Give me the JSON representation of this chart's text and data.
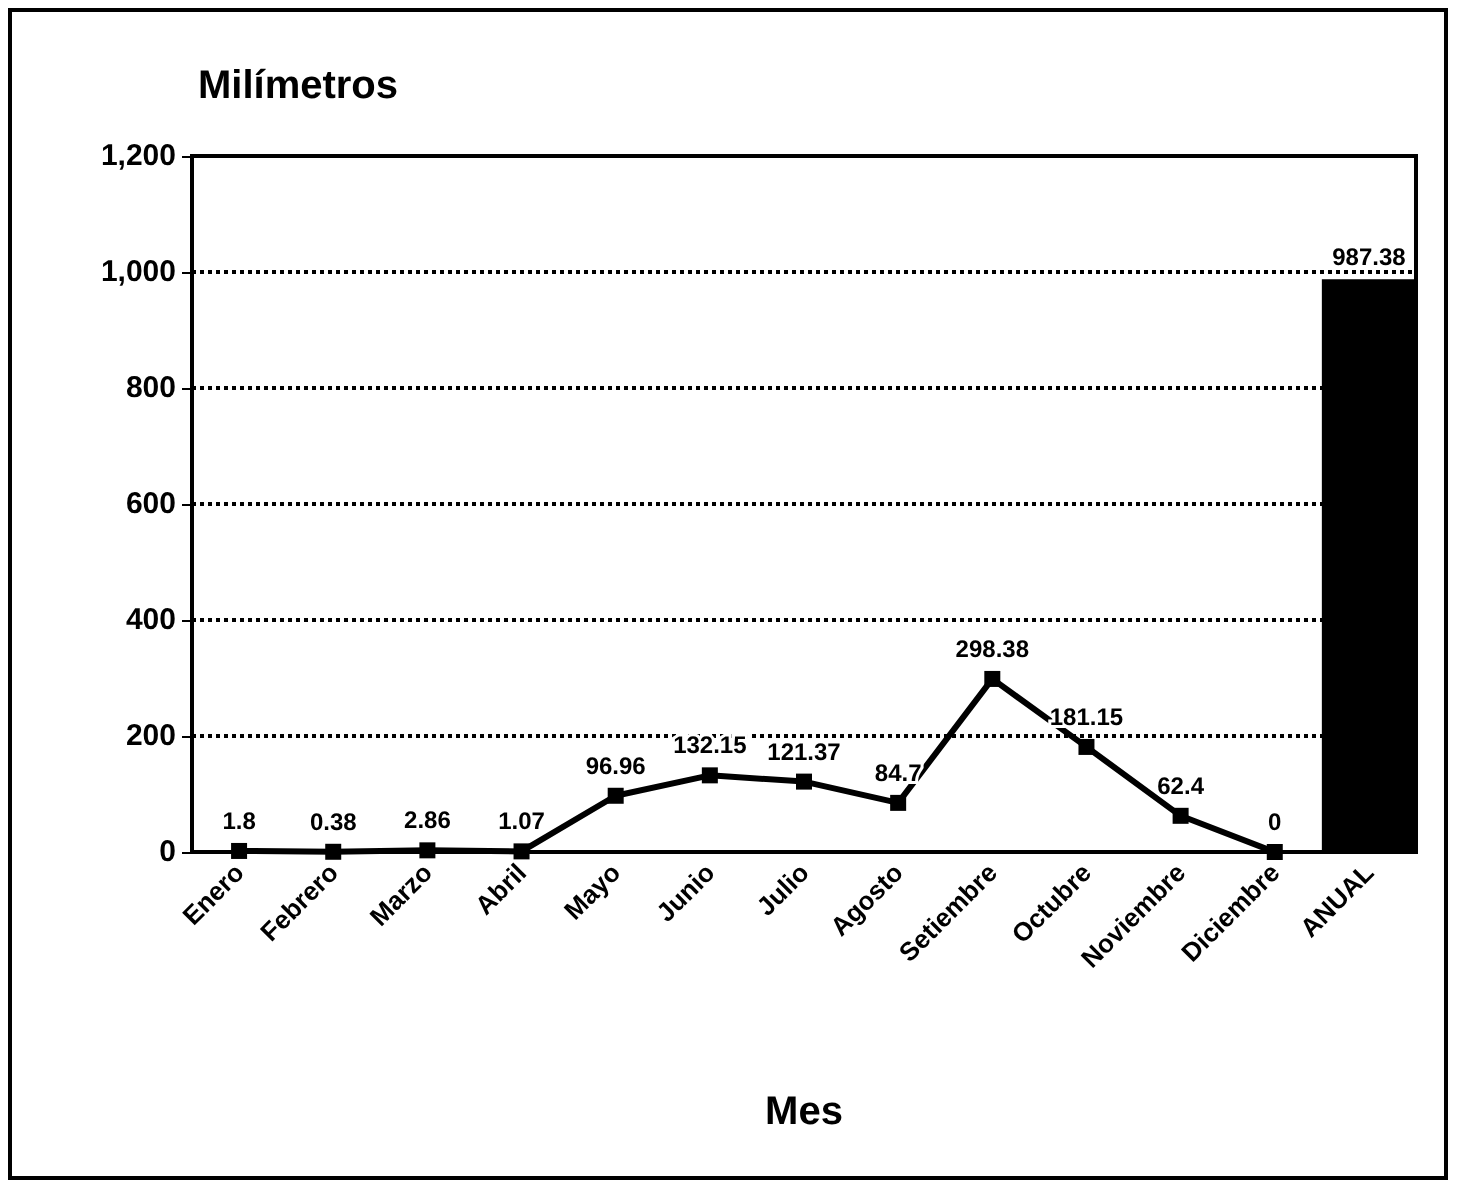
{
  "chart_data": {
    "type": "line",
    "ylabel": "Milímetros",
    "xlabel": "Mes",
    "categories": [
      "Enero",
      "Febrero",
      "Marzo",
      "Abril",
      "Mayo",
      "Junio",
      "Julio",
      "Agosto",
      "Setiembre",
      "Octubre",
      "Noviembre",
      "Diciembre",
      "ANUAL"
    ],
    "series": [
      {
        "color": "#000000",
        "values": [
          1.8,
          0.38,
          2.86,
          1.07,
          96.96,
          132.15,
          121.37,
          84.7,
          298.38,
          181.15,
          62.4,
          0,
          null
        ]
      },
      {
        "type": "bar",
        "color": "#000000",
        "values": [
          null,
          null,
          null,
          null,
          null,
          null,
          null,
          null,
          null,
          null,
          null,
          null,
          987.38
        ]
      }
    ],
    "ylim": [
      0,
      1200
    ],
    "yticks": [
      0,
      200,
      400,
      600,
      800,
      {
        "value": 1000,
        "label": "1,000"
      },
      {
        "value": 1200,
        "label": "1,200"
      }
    ],
    "grid": "y",
    "marker": "square",
    "line_style": "solid",
    "data_labels": true
  }
}
